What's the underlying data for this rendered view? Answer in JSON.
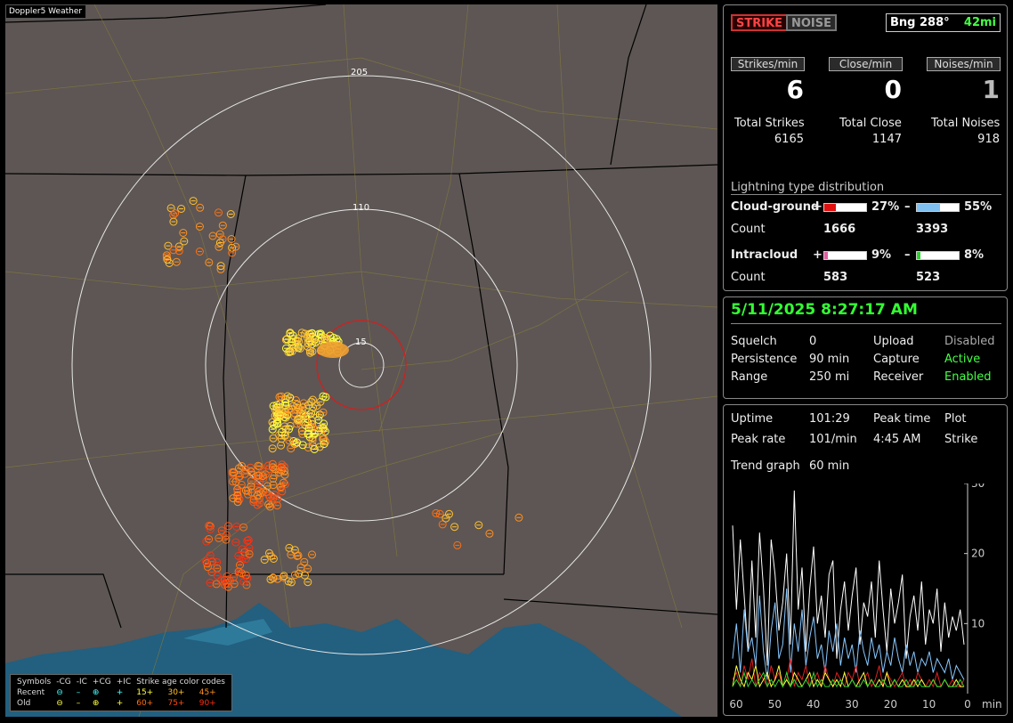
{
  "map": {
    "title": "Doppler5 Weather",
    "range_labels": [
      "205",
      "110",
      "15"
    ],
    "legend": {
      "symbols_label": "Symbols",
      "cols": [
        "-CG",
        "-IC",
        "+CG",
        "+IC"
      ],
      "recent_label": "Recent",
      "old_label": "Old",
      "age_title": "Strike age color codes",
      "recent_ages": [
        "15+",
        "30+",
        "45+"
      ],
      "old_ages": [
        "60+",
        "75+",
        "90+"
      ],
      "age_colors": [
        "#ffff40",
        "#ffc030",
        "#ff9020",
        "#ff7010",
        "#ff5010",
        "#ff3010"
      ]
    }
  },
  "status": {
    "strike_button": "STRIKE",
    "noise_button": "NOISE",
    "bearing_label": "Bng 288°",
    "distance_label": "42mi",
    "strikes_min_label": "Strikes/min",
    "close_min_label": "Close/min",
    "noises_min_label": "Noises/min",
    "strikes_min": "6",
    "close_min": "0",
    "noises_min": "1",
    "total_strikes_label": "Total Strikes",
    "total_close_label": "Total Close",
    "total_noises_label": "Total Noises",
    "total_strikes": "6165",
    "total_close": "1147",
    "total_noises": "918"
  },
  "distribution": {
    "title": "Lightning type distribution",
    "cg_label": "Cloud-ground",
    "ic_label": "Intracloud",
    "count_label": "Count",
    "plus": "+",
    "minus": "–",
    "cg_plus_pct": "27%",
    "cg_minus_pct": "55%",
    "cg_plus_count": "1666",
    "cg_minus_count": "3393",
    "ic_plus_pct": "9%",
    "ic_minus_pct": "8%",
    "ic_plus_count": "583",
    "ic_minus_count": "523",
    "cg_plus_frac": 0.27,
    "cg_minus_frac": 0.55,
    "ic_plus_frac": 0.09,
    "ic_minus_frac": 0.08,
    "colors": {
      "cg_plus": "#e01010",
      "cg_minus": "#80c0f0",
      "ic_plus": "#e060a0",
      "ic_minus": "#30d030"
    }
  },
  "settings": {
    "datetime": "5/11/2025 8:27:17 AM",
    "squelch_label": "Squelch",
    "squelch": "0",
    "persistence_label": "Persistence",
    "persistence": "90 min",
    "range_label": "Range",
    "range": "250 mi",
    "upload_label": "Upload",
    "upload": "Disabled",
    "capture_label": "Capture",
    "capture": "Active",
    "receiver_label": "Receiver",
    "receiver": "Enabled"
  },
  "stats": {
    "uptime_label": "Uptime",
    "uptime": "101:29",
    "peak_time_label": "Peak time",
    "peak_time": "4:45 AM",
    "plot_label": "Plot",
    "plot": "Strike",
    "peak_rate_label": "Peak rate",
    "peak_rate": "101/min",
    "trend_label": "Trend graph",
    "trend": "60 min"
  },
  "chart_data": {
    "type": "line",
    "x_ticks": [
      "60",
      "50",
      "40",
      "30",
      "20",
      "10",
      "0"
    ],
    "x_unit": "min",
    "y_ticks": [
      "30",
      "20",
      "10"
    ],
    "ylim": [
      0,
      30
    ],
    "xlim": [
      60,
      0
    ],
    "series": [
      {
        "color": "#ffffff",
        "values": [
          24,
          12,
          22,
          14,
          6,
          19,
          8,
          23,
          15,
          4,
          22,
          17,
          9,
          13,
          20,
          7,
          29,
          12,
          18,
          6,
          15,
          21,
          10,
          14,
          8,
          17,
          19,
          5,
          12,
          16,
          9,
          14,
          18,
          7,
          13,
          11,
          16,
          8,
          19,
          12,
          6,
          15,
          10,
          13,
          17,
          5,
          11,
          14,
          9,
          16,
          7,
          12,
          10,
          15,
          6,
          13,
          8,
          11,
          9,
          12,
          7
        ]
      },
      {
        "color": "#88c8ff",
        "values": [
          5,
          10,
          3,
          12,
          6,
          8,
          4,
          14,
          6,
          2,
          9,
          13,
          5,
          7,
          15,
          3,
          10,
          6,
          12,
          4,
          8,
          11,
          5,
          7,
          3,
          9,
          6,
          10,
          4,
          8,
          5,
          7,
          3,
          9,
          6,
          4,
          8,
          5,
          7,
          3,
          6,
          4,
          8,
          5,
          3,
          7,
          4,
          6,
          3,
          5,
          4,
          6,
          3,
          5,
          4,
          3,
          5,
          2,
          4,
          3,
          2
        ]
      },
      {
        "color": "#e02020",
        "values": [
          2,
          3,
          1,
          4,
          2,
          5,
          1,
          3,
          2,
          1,
          4,
          2,
          3,
          1,
          2,
          5,
          1,
          3,
          2,
          4,
          1,
          2,
          3,
          1,
          4,
          2,
          1,
          3,
          2,
          1,
          3,
          2,
          4,
          1,
          2,
          3,
          1,
          2,
          4,
          1,
          3,
          2,
          1,
          2,
          3,
          1,
          2,
          1,
          3,
          2,
          1,
          2,
          1,
          3,
          1,
          2,
          1,
          2,
          1,
          1,
          2
        ]
      },
      {
        "color": "#ffff40",
        "values": [
          1,
          4,
          2,
          1,
          3,
          2,
          4,
          1,
          2,
          3,
          1,
          2,
          4,
          1,
          2,
          1,
          3,
          2,
          1,
          2,
          3,
          1,
          2,
          1,
          3,
          2,
          1,
          2,
          1,
          3,
          1,
          2,
          1,
          2,
          3,
          1,
          2,
          1,
          2,
          1,
          3,
          1,
          2,
          1,
          2,
          1,
          1,
          2,
          1,
          2,
          1,
          1,
          2,
          1,
          1,
          2,
          1,
          1,
          2,
          1,
          1
        ]
      },
      {
        "color": "#30d030",
        "values": [
          1,
          2,
          1,
          3,
          1,
          2,
          1,
          2,
          3,
          1,
          2,
          1,
          2,
          1,
          3,
          1,
          2,
          1,
          1,
          2,
          1,
          3,
          1,
          2,
          1,
          1,
          2,
          1,
          2,
          1,
          1,
          2,
          1,
          1,
          2,
          1,
          2,
          1,
          1,
          2,
          1,
          1,
          2,
          1,
          1,
          2,
          1,
          1,
          2,
          1,
          1,
          1,
          2,
          1,
          1,
          2,
          1,
          1,
          1,
          2,
          1
        ]
      }
    ]
  }
}
